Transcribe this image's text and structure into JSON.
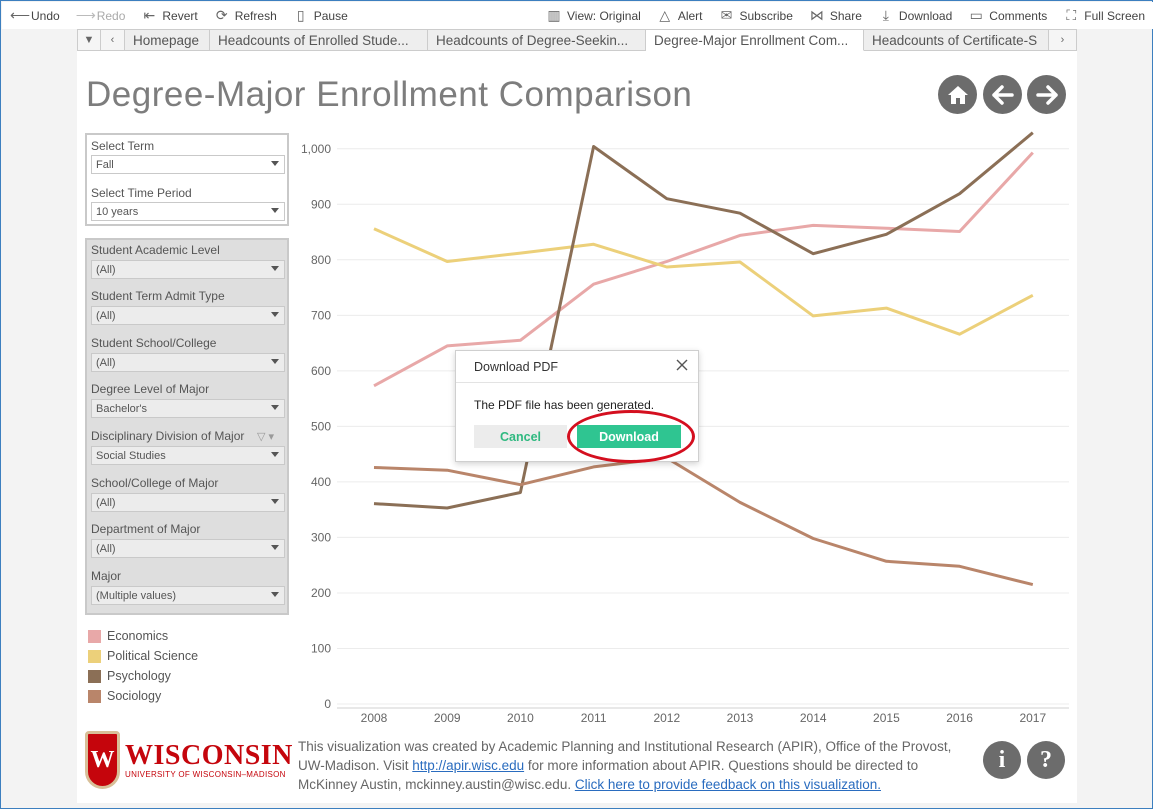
{
  "toolbar": {
    "undo": "Undo",
    "redo": "Redo",
    "revert": "Revert",
    "refresh": "Refresh",
    "pause": "Pause",
    "view": "View: Original",
    "alert": "Alert",
    "subscribe": "Subscribe",
    "share": "Share",
    "download": "Download",
    "comments": "Comments",
    "fullscreen": "Full Screen"
  },
  "tabs": [
    "Homepage",
    "Headcounts of Enrolled Stude...",
    "Headcounts of Degree-Seekin...",
    "Degree-Major Enrollment Com...",
    "Headcounts of Certificate-S"
  ],
  "page_title": "Degree-Major Enrollment Comparison",
  "filters_top": [
    {
      "label": "Select Term",
      "value": "Fall"
    },
    {
      "label": "Select Time Period",
      "value": "10 years"
    }
  ],
  "filters": [
    {
      "label": "Student Academic Level",
      "value": "(All)"
    },
    {
      "label": "Student Term Admit Type",
      "value": "(All)"
    },
    {
      "label": "Student School/College",
      "value": "(All)"
    },
    {
      "label": "Degree Level of Major",
      "value": "Bachelor's"
    },
    {
      "label": "Disciplinary Division of Major",
      "value": "Social Studies"
    },
    {
      "label": "School/College of Major",
      "value": "(All)"
    },
    {
      "label": "Department of Major",
      "value": "(All)"
    },
    {
      "label": "Major",
      "value": "(Multiple values)"
    }
  ],
  "legend": [
    {
      "name": "Economics",
      "color": "#e8a8a8"
    },
    {
      "name": "Political Science",
      "color": "#ecd07a"
    },
    {
      "name": "Psychology",
      "color": "#8b6f56"
    },
    {
      "name": "Sociology",
      "color": "#b9856a"
    }
  ],
  "chart_data": {
    "type": "line",
    "x": [
      "2008",
      "2009",
      "2010",
      "2011",
      "2012",
      "2013",
      "2014",
      "2015",
      "2016",
      "2017"
    ],
    "ylim": [
      0,
      1050
    ],
    "yticks": [
      "0",
      "100",
      "200",
      "300",
      "400",
      "500",
      "600",
      "700",
      "800",
      "900",
      "1,000"
    ],
    "ytick_values": [
      0,
      100,
      200,
      300,
      400,
      500,
      600,
      700,
      800,
      900,
      1000
    ],
    "grid": true,
    "series": [
      {
        "name": "Economics",
        "color": "#e8a8a8",
        "values": [
          573,
          645,
          655,
          756,
          797,
          844,
          862,
          857,
          851,
          993
        ]
      },
      {
        "name": "Political Science",
        "color": "#ecd07a",
        "values": [
          856,
          797,
          812,
          828,
          787,
          796,
          699,
          713,
          666,
          736
        ]
      },
      {
        "name": "Psychology",
        "color": "#8b6f56",
        "values": [
          361,
          353,
          381,
          1004,
          910,
          884,
          811,
          846,
          919,
          1029
        ]
      },
      {
        "name": "Sociology",
        "color": "#b9856a",
        "values": [
          426,
          421,
          395,
          427,
          443,
          363,
          298,
          257,
          248,
          215
        ]
      }
    ]
  },
  "dialog": {
    "title": "Download PDF",
    "message": "The PDF file has been generated.",
    "cancel": "Cancel",
    "download": "Download"
  },
  "footer": {
    "text_before_link": "This visualization was created by Academic Planning and Institutional Research (APIR), Office of the Provost, UW-Madison. Visit ",
    "link": "http://apir.wisc.edu",
    "text_after_link": " for more information about APIR. Questions should be directed to McKinney Austin, mckinney.austin@wisc.edu. ",
    "feedback_link": "Click here to provide feedback on this visualization."
  },
  "logo": {
    "letter": "W",
    "word": "WISCONSIN",
    "sub": "UNIVERSITY OF WISCONSIN–MADISON"
  },
  "info_icon": "i",
  "help_icon": "?"
}
